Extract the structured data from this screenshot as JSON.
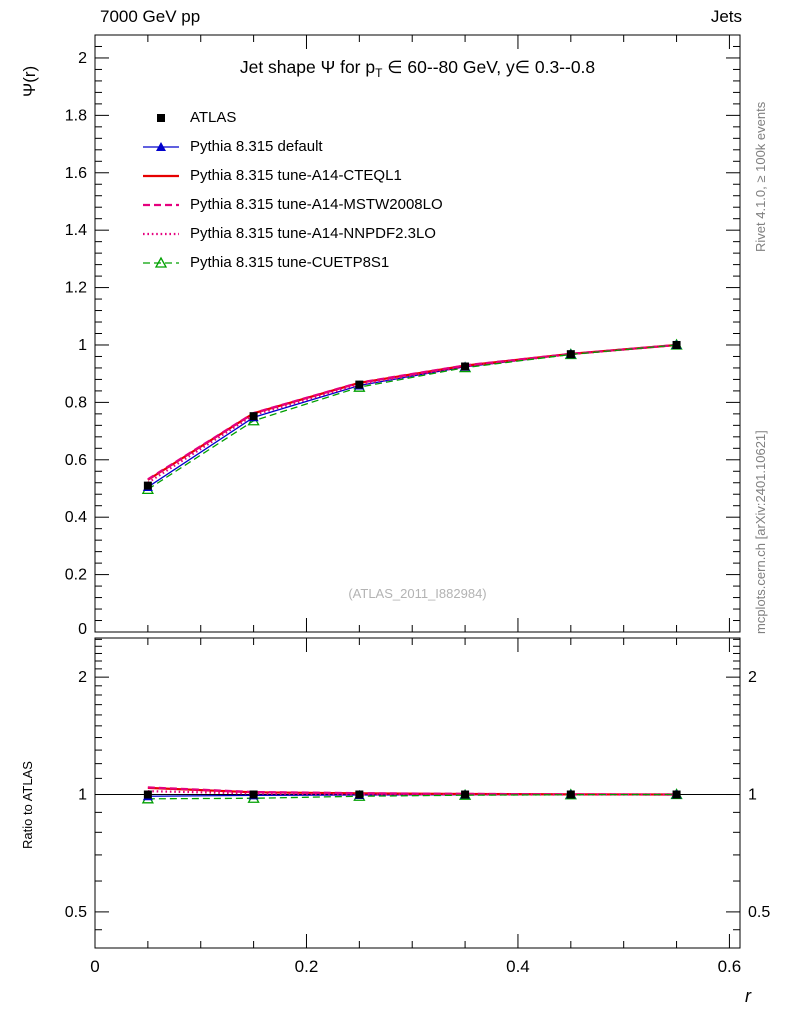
{
  "header": {
    "left": "7000 GeV pp",
    "right": "Jets"
  },
  "title": {
    "part1": "Jet shape Ψ for p",
    "sub": "T",
    "part2": " ∈ 60--80 GeV, y∈ 0.3--0.8"
  },
  "labels": {
    "ylabel_main": "Ψ(r)",
    "ylabel_ratio": "Ratio to ATLAS",
    "xlabel": "r",
    "watermark": "(ATLAS_2011_I882984)",
    "side_top": "Rivet 4.1.0, ≥ 100k events",
    "side_bottom": "mcplots.cern.ch [arXiv:2401.10621]"
  },
  "chart_data": {
    "type": "line",
    "title": "Jet shape Ψ for pT ∈ 60--80 GeV, y∈ 0.3--0.8",
    "xlabel": "r",
    "ylabel": "Ψ(r)",
    "ratio_ylabel": "Ratio to ATLAS",
    "legend_position": "top-left",
    "x": [
      0.05,
      0.15,
      0.25,
      0.35,
      0.45,
      0.55
    ],
    "xlim": [
      0,
      0.61
    ],
    "xticks": [
      0,
      0.2,
      0.4,
      0.6
    ],
    "xtick_labels": [
      "0",
      "0.2",
      "0.4",
      "0.6"
    ],
    "x_minor_step": 0.05,
    "main": {
      "ylim": [
        0,
        2.08
      ],
      "yticks": [
        0.2,
        0.4,
        0.6,
        0.8,
        1.0,
        1.2,
        1.4,
        1.6,
        1.8,
        2.0
      ],
      "ytick_labels": [
        "0.2",
        "0.4",
        "0.6",
        "0.8",
        "1",
        "1.2",
        "1.4",
        "1.6",
        "1.8",
        "2"
      ],
      "zero_label": "0",
      "y_minor_step": 0.04
    },
    "ratio": {
      "scale": "log",
      "ylim": [
        0.404,
        2.52
      ],
      "yticks": [
        0.5,
        1,
        2
      ],
      "ytick_labels": [
        "0.5",
        "1",
        "2"
      ],
      "minor_ticks": [
        0.45,
        0.6,
        0.7,
        0.8,
        0.9,
        1.1,
        1.2,
        1.3,
        1.4,
        1.5,
        1.6,
        1.7,
        1.8,
        1.9,
        2.1,
        2.2,
        2.3,
        2.4,
        2.5
      ],
      "ref_value": 1
    },
    "series": [
      {
        "name": "ATLAS",
        "color": "#000000",
        "line": "none",
        "width": 0,
        "marker": "square-filled",
        "values": [
          0.51,
          0.752,
          0.862,
          0.925,
          0.968,
          1.0
        ],
        "ratio": [
          1.0,
          1.0,
          1.0,
          1.0,
          1.0,
          1.0
        ]
      },
      {
        "name": "Pythia 8.315 default",
        "color": "#0000cc",
        "line": "solid",
        "width": 1.3,
        "marker": "triangle-filled",
        "values": [
          0.505,
          0.748,
          0.859,
          0.924,
          0.968,
          1.0
        ],
        "ratio": [
          0.99,
          0.995,
          0.997,
          0.999,
          1.0,
          1.0
        ]
      },
      {
        "name": "Pythia 8.315 tune-A14-CTEQL1",
        "color": "#e60000",
        "line": "solid",
        "width": 2.2,
        "marker": "none",
        "values": [
          0.53,
          0.762,
          0.868,
          0.928,
          0.969,
          1.0
        ],
        "ratio": [
          1.04,
          1.013,
          1.007,
          1.003,
          1.001,
          1.0
        ]
      },
      {
        "name": "Pythia 8.315 tune-A14-MSTW2008LO",
        "color": "#e5007e",
        "line": "dashed",
        "width": 2.2,
        "marker": "none",
        "values": [
          0.532,
          0.763,
          0.869,
          0.929,
          0.969,
          1.0
        ],
        "ratio": [
          1.043,
          1.015,
          1.008,
          1.004,
          1.001,
          1.0
        ]
      },
      {
        "name": "Pythia 8.315 tune-A14-NNPDF2.3LO",
        "color": "#e5007e",
        "line": "dotted",
        "width": 2.2,
        "marker": "none",
        "values": [
          0.52,
          0.756,
          0.863,
          0.925,
          0.968,
          1.0
        ],
        "ratio": [
          1.02,
          1.006,
          1.001,
          1.0,
          1.0,
          1.0
        ]
      },
      {
        "name": "Pythia 8.315 tune-CUETP8S1",
        "color": "#00a000",
        "line": "dashed",
        "width": 1.3,
        "marker": "triangle-open",
        "values": [
          0.497,
          0.736,
          0.853,
          0.921,
          0.967,
          1.0
        ],
        "ratio": [
          0.975,
          0.978,
          0.99,
          0.996,
          0.999,
          1.0
        ]
      }
    ]
  }
}
